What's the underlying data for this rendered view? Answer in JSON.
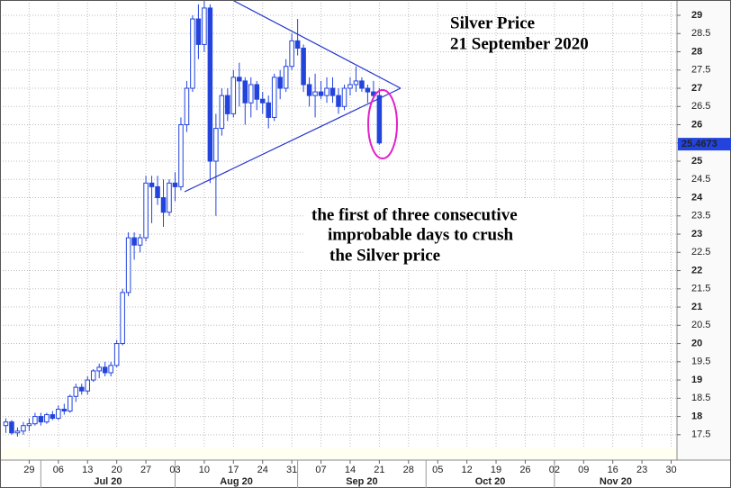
{
  "chart_data": {
    "type": "candlestick",
    "title": "Silver Price",
    "subtitle": "21 September 2020",
    "annotation": [
      "the first of three consecutive",
      "improbable days to crush",
      "the Silver price"
    ],
    "color": "#2244dd",
    "grid": true,
    "x": [
      "2020-06-23",
      "2020-06-24",
      "2020-06-25",
      "2020-06-26",
      "2020-06-29",
      "2020-06-30",
      "2020-07-01",
      "2020-07-02",
      "2020-07-03",
      "2020-07-06",
      "2020-07-07",
      "2020-07-08",
      "2020-07-09",
      "2020-07-10",
      "2020-07-13",
      "2020-07-14",
      "2020-07-15",
      "2020-07-16",
      "2020-07-17",
      "2020-07-20",
      "2020-07-21",
      "2020-07-22",
      "2020-07-23",
      "2020-07-24",
      "2020-07-27",
      "2020-07-28",
      "2020-07-29",
      "2020-07-30",
      "2020-07-31",
      "2020-08-03",
      "2020-08-04",
      "2020-08-05",
      "2020-08-06",
      "2020-08-07",
      "2020-08-10",
      "2020-08-11",
      "2020-08-12",
      "2020-08-13",
      "2020-08-14",
      "2020-08-17",
      "2020-08-18",
      "2020-08-19",
      "2020-08-20",
      "2020-08-21",
      "2020-08-24",
      "2020-08-25",
      "2020-08-26",
      "2020-08-27",
      "2020-08-28",
      "2020-08-31",
      "2020-09-01",
      "2020-09-02",
      "2020-09-03",
      "2020-09-04",
      "2020-09-07",
      "2020-09-08",
      "2020-09-09",
      "2020-09-10",
      "2020-09-11",
      "2020-09-14",
      "2020-09-15",
      "2020-09-16",
      "2020-09-17",
      "2020-09-18",
      "2020-09-21"
    ],
    "open": [
      17.75,
      17.85,
      17.55,
      17.6,
      17.75,
      17.8,
      18.0,
      17.85,
      18.05,
      17.95,
      18.2,
      18.15,
      18.55,
      18.8,
      18.7,
      19.0,
      19.25,
      19.35,
      19.2,
      19.4,
      20.0,
      21.4,
      22.9,
      22.7,
      22.9,
      24.4,
      24.3,
      24.0,
      23.6,
      24.4,
      24.3,
      26.0,
      27.0,
      28.9,
      28.2,
      29.2,
      25.0,
      25.9,
      26.8,
      26.3,
      27.3,
      27.2,
      26.6,
      27.1,
      26.7,
      26.6,
      26.2,
      27.3,
      27.0,
      27.6,
      28.3,
      28.1,
      27.1,
      26.8,
      26.9,
      26.8,
      27.0,
      26.8,
      26.5,
      27.0,
      27.1,
      27.2,
      27.0,
      26.9,
      26.8
    ],
    "high": [
      17.95,
      17.9,
      17.7,
      17.85,
      17.95,
      18.1,
      18.1,
      18.1,
      18.15,
      18.3,
      18.35,
      18.6,
      18.9,
      18.9,
      19.1,
      19.3,
      19.45,
      19.5,
      19.5,
      20.1,
      21.5,
      23.05,
      23.05,
      23.0,
      24.6,
      24.6,
      24.6,
      24.5,
      24.5,
      24.7,
      26.2,
      27.2,
      29.0,
      29.3,
      29.45,
      29.3,
      26.3,
      27.0,
      27.0,
      27.5,
      27.7,
      27.3,
      27.3,
      27.2,
      26.9,
      26.8,
      27.4,
      27.5,
      27.8,
      28.5,
      28.9,
      28.2,
      27.3,
      27.4,
      27.2,
      27.3,
      27.3,
      27.0,
      27.1,
      27.3,
      27.6,
      27.3,
      27.1,
      27.2,
      27.0
    ],
    "low": [
      17.55,
      17.5,
      17.45,
      17.5,
      17.6,
      17.75,
      17.75,
      17.8,
      17.9,
      17.9,
      18.05,
      18.1,
      18.4,
      18.6,
      18.6,
      18.95,
      19.05,
      19.1,
      19.1,
      19.35,
      19.95,
      21.3,
      22.3,
      22.5,
      22.8,
      23.3,
      23.8,
      23.2,
      23.5,
      23.9,
      24.2,
      25.8,
      26.9,
      27.8,
      28.0,
      24.4,
      23.5,
      25.7,
      26.1,
      26.2,
      26.5,
      26.0,
      26.2,
      26.4,
      26.3,
      25.9,
      26.1,
      26.7,
      26.9,
      27.5,
      27.9,
      26.9,
      26.5,
      26.2,
      26.7,
      26.6,
      26.6,
      26.3,
      26.4,
      26.8,
      26.9,
      26.9,
      26.6,
      26.7,
      25.45
    ],
    "close": [
      17.85,
      17.55,
      17.6,
      17.75,
      17.8,
      18.0,
      17.85,
      18.05,
      17.95,
      18.2,
      18.15,
      18.55,
      18.8,
      18.7,
      19.0,
      19.25,
      19.35,
      19.2,
      19.4,
      20.0,
      21.4,
      22.9,
      22.7,
      22.9,
      24.4,
      24.3,
      24.0,
      23.6,
      24.4,
      24.3,
      26.0,
      27.0,
      28.9,
      28.2,
      29.2,
      25.0,
      25.9,
      26.8,
      26.3,
      27.3,
      27.2,
      26.6,
      27.1,
      26.7,
      26.6,
      26.2,
      27.3,
      27.0,
      27.6,
      28.3,
      28.1,
      27.1,
      26.8,
      26.9,
      26.8,
      27.0,
      26.8,
      26.5,
      27.0,
      27.1,
      27.2,
      27.0,
      26.9,
      26.8,
      25.5
    ],
    "last_price": 25.4673,
    "xlim": [
      "2020-06-22",
      "2020-12-01"
    ],
    "xticks": [
      {
        "value": "2020-06-29",
        "label": "29"
      },
      {
        "value": "2020-07-06",
        "label": "06"
      },
      {
        "value": "2020-07-13",
        "label": "13"
      },
      {
        "value": "2020-07-20",
        "label": "20"
      },
      {
        "value": "2020-07-27",
        "label": "27"
      },
      {
        "value": "2020-08-03",
        "label": "03"
      },
      {
        "value": "2020-08-10",
        "label": "10"
      },
      {
        "value": "2020-08-17",
        "label": "17"
      },
      {
        "value": "2020-08-24",
        "label": "24"
      },
      {
        "value": "2020-08-31",
        "label": "31"
      },
      {
        "value": "2020-09-07",
        "label": "07"
      },
      {
        "value": "2020-09-14",
        "label": "14"
      },
      {
        "value": "2020-09-21",
        "label": "21"
      },
      {
        "value": "2020-09-28",
        "label": "28"
      },
      {
        "value": "2020-10-05",
        "label": "05"
      },
      {
        "value": "2020-10-12",
        "label": "12"
      },
      {
        "value": "2020-10-19",
        "label": "19"
      },
      {
        "value": "2020-10-26",
        "label": "26"
      },
      {
        "value": "2020-11-02",
        "label": "02"
      },
      {
        "value": "2020-11-09",
        "label": "09"
      },
      {
        "value": "2020-11-16",
        "label": "16"
      },
      {
        "value": "2020-11-23",
        "label": "23"
      },
      {
        "value": "2020-11-30",
        "label": "30"
      }
    ],
    "month_labels": [
      {
        "value": "2020-07",
        "label": "Jul 20"
      },
      {
        "value": "2020-08",
        "label": "Aug 20"
      },
      {
        "value": "2020-09",
        "label": "Sep 20"
      },
      {
        "value": "2020-10",
        "label": "Oct 20"
      },
      {
        "value": "2020-11",
        "label": "Nov 20"
      }
    ],
    "ylim": [
      17.15,
      29.42
    ],
    "yticks": [
      17.5,
      18,
      18.5,
      19,
      19.5,
      20,
      20.5,
      21,
      21.5,
      22,
      22.5,
      23,
      23.5,
      24,
      24.5,
      25,
      25.5,
      26,
      26.5,
      27,
      27.5,
      28,
      28.5,
      29
    ]
  }
}
